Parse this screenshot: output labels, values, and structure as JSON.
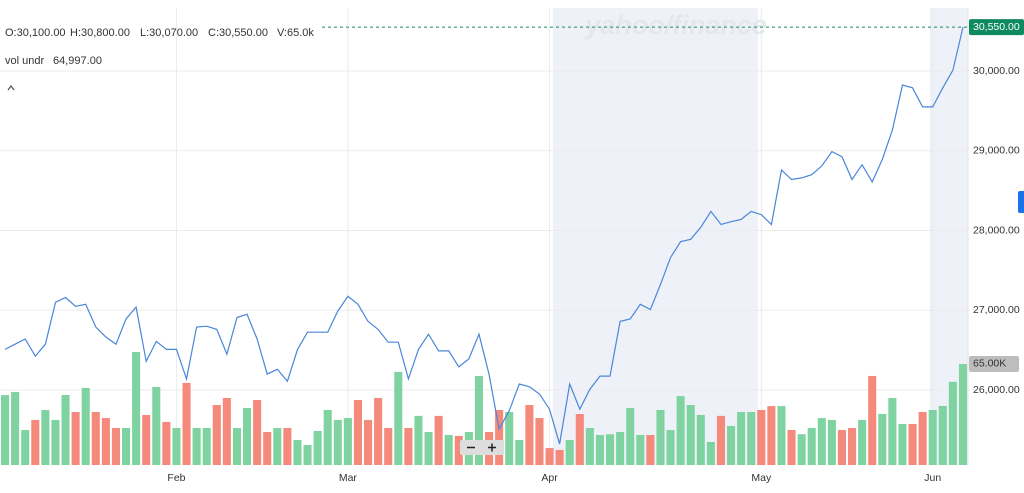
{
  "chart_data": {
    "type": "line",
    "header_texts": [
      "O:30,100.00",
      "H:30,800.00",
      "L:30,070.00",
      "C:30,550.00",
      "V:65.0k"
    ],
    "indicator_label": "vol undr",
    "indicator_value": "64,997.00",
    "watermark": "yahoo/finance",
    "xlim": [
      -0.5,
      95.5
    ],
    "xticks": [
      {
        "value": 17,
        "label": "Feb"
      },
      {
        "value": 34,
        "label": "Mar"
      },
      {
        "value": 54,
        "label": "Apr"
      },
      {
        "value": 75,
        "label": "May"
      },
      {
        "value": 92,
        "label": "Jun"
      }
    ],
    "ylim": [
      25060,
      30790
    ],
    "yticks": [
      {
        "value": 26000,
        "label": "26,000.00"
      },
      {
        "value": 27000,
        "label": "27,000.00"
      },
      {
        "value": 28000,
        "label": "28,000.00"
      },
      {
        "value": 29000,
        "label": "29,000.00"
      },
      {
        "value": 30000,
        "label": "30,000.00"
      }
    ],
    "current_price": {
      "value": 30550,
      "label": "30,550.00"
    },
    "y2lim": [
      0,
      294000
    ],
    "y2ticks": [
      {
        "value": 65000,
        "label": "65.00K"
      }
    ],
    "grid": true,
    "series": [
      {
        "color": "#4a86d9",
        "values": [
          26510,
          26575,
          26640,
          26425,
          26575,
          27100,
          27160,
          27050,
          27075,
          26790,
          26665,
          26575,
          26890,
          27040,
          26360,
          26610,
          26510,
          26510,
          26140,
          26790,
          26800,
          26760,
          26450,
          26910,
          26950,
          26640,
          26200,
          26260,
          26110,
          26510,
          26725,
          26725,
          26725,
          26990,
          27175,
          27075,
          26860,
          26760,
          26600,
          26600,
          26140,
          26510,
          26700,
          26490,
          26490,
          26290,
          26390,
          26700,
          26200,
          25510,
          25740,
          26075,
          26040,
          25950,
          25760,
          25325,
          26075,
          25760,
          26010,
          26175,
          26175,
          26860,
          26890,
          27075,
          27010,
          27325,
          27660,
          27860,
          27890,
          28040,
          28240,
          28075,
          28110,
          28140,
          28240,
          28200,
          28075,
          28760,
          28640,
          28660,
          28700,
          28810,
          28990,
          28925,
          28640,
          28825,
          28610,
          28890,
          29260,
          29825,
          29790,
          29550,
          29550,
          29790,
          30010,
          30550
        ]
      },
      {
        "type": "bar",
        "axis": "y2",
        "up_color": "#7fd3a0",
        "down_color": "#f4897c",
        "values": [
          45000,
          47000,
          22500,
          29000,
          35400,
          29000,
          45000,
          34100,
          49600,
          34100,
          30200,
          23800,
          23800,
          72700,
          32200,
          50200,
          27700,
          23800,
          52800,
          23800,
          23800,
          38600,
          43100,
          23800,
          36700,
          41800,
          21200,
          23800,
          23800,
          16100,
          12900,
          21900,
          35400,
          29000,
          30200,
          41800,
          29000,
          43100,
          23800,
          59900,
          23800,
          31600,
          21200,
          31600,
          19300,
          18700,
          21200,
          57300,
          21200,
          35400,
          34100,
          16100,
          38600,
          30200,
          10900,
          9700,
          16100,
          32800,
          23800,
          19300,
          19800,
          21200,
          36700,
          19300,
          19300,
          35400,
          22500,
          44300,
          38600,
          32200,
          14800,
          31600,
          25100,
          34100,
          34100,
          35400,
          37900,
          37900,
          22500,
          19800,
          23800,
          30200,
          29000,
          22500,
          23800,
          29000,
          57300,
          32800,
          43100,
          26400,
          26400,
          34100,
          35400,
          38000,
          53500,
          64997
        ]
      }
    ]
  }
}
